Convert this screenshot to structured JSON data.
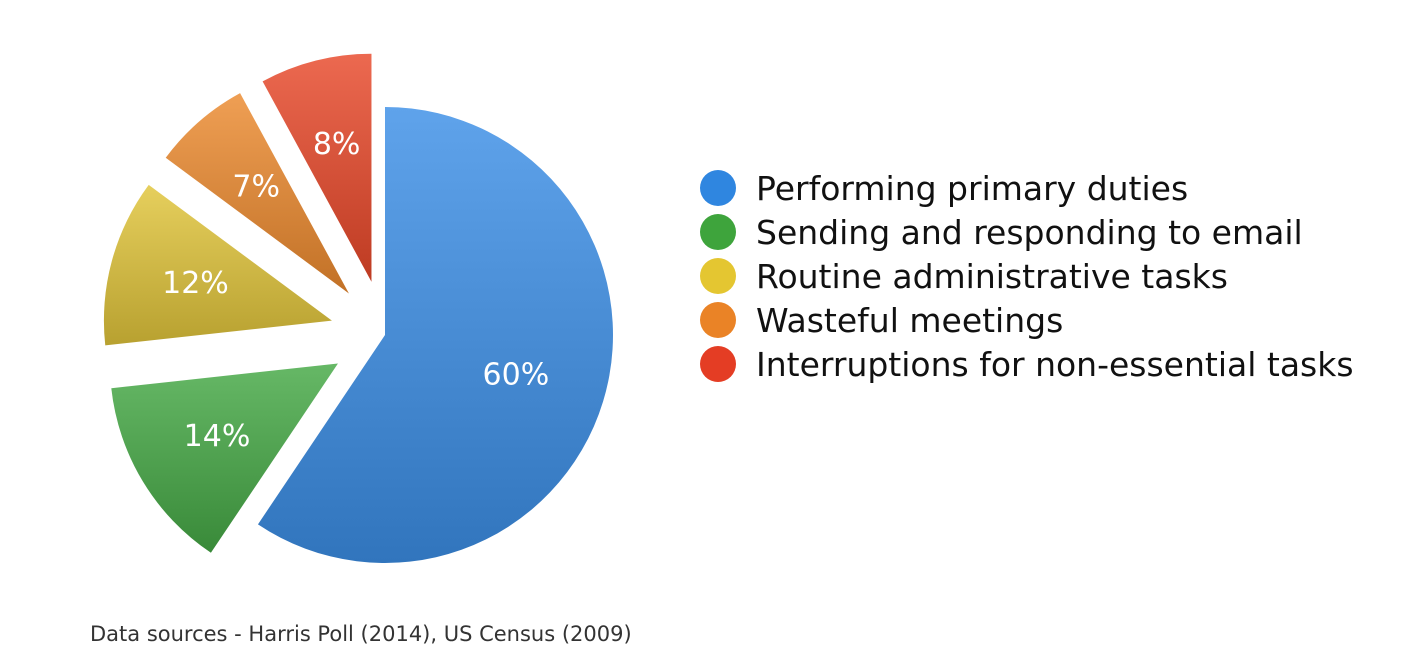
{
  "chart_data": {
    "type": "pie",
    "title": "",
    "categories": [
      "Performing primary duties",
      "Sending and responding to email",
      "Routine administrative tasks",
      "Wasteful meetings",
      "Interruptions for non-essential tasks"
    ],
    "values": [
      60,
      14,
      12,
      7,
      8
    ],
    "value_labels": [
      "60%",
      "14%",
      "12%",
      "7%",
      "8%"
    ],
    "colors": [
      "#3c8fe6",
      "#45a845",
      "#e0c43a",
      "#ec8a2e",
      "#e8482a"
    ],
    "exploded": [
      false,
      true,
      true,
      true,
      true
    ],
    "legend_position": "right"
  },
  "legend": {
    "items": [
      {
        "label": "Performing primary duties",
        "color": "#2f86e0"
      },
      {
        "label": "Sending and responding to email",
        "color": "#3ea43c"
      },
      {
        "label": "Routine administrative tasks",
        "color": "#e4c631"
      },
      {
        "label": "Wasteful meetings",
        "color": "#ea8326"
      },
      {
        "label": "Interruptions for non-essential tasks",
        "color": "#e43d24"
      }
    ]
  },
  "footer": {
    "source": "Data sources - Harris Poll (2014), US Census (2009)"
  }
}
